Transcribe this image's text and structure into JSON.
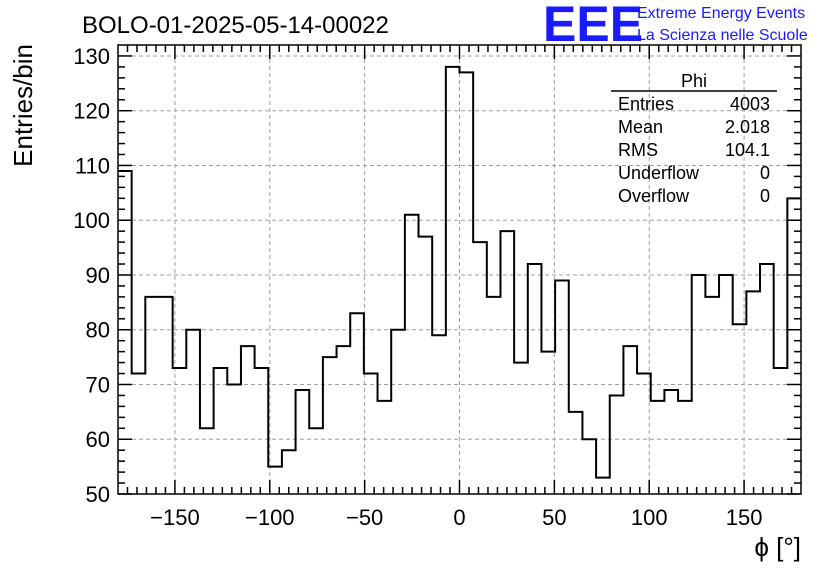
{
  "chart_data": {
    "type": "bar",
    "title": "BOLO-01-2025-05-14-00022",
    "xlabel": "ϕ [°]",
    "ylabel": "Entries/bin",
    "xlim": [
      -180,
      180
    ],
    "ylim": [
      50,
      132
    ],
    "bin_width": 7.2,
    "grid": true,
    "xticks": [
      -150,
      -100,
      -50,
      0,
      50,
      100,
      150
    ],
    "xtick_labels": [
      "−150",
      "−100",
      "−50",
      "0",
      "50",
      "100",
      "150"
    ],
    "yticks": [
      50,
      60,
      70,
      80,
      90,
      100,
      110,
      120,
      130
    ],
    "ytick_labels": [
      "50",
      "60",
      "70",
      "80",
      "90",
      "100",
      "110",
      "120",
      "130"
    ],
    "values": [
      109,
      72,
      86,
      86,
      73,
      80,
      62,
      73,
      70,
      77,
      73,
      55,
      58,
      69,
      62,
      75,
      77,
      83,
      72,
      67,
      80,
      101,
      97,
      79,
      128,
      127,
      96,
      86,
      98,
      74,
      92,
      76,
      89,
      65,
      60,
      53,
      68,
      77,
      72,
      67,
      69,
      67,
      90,
      86,
      90,
      81,
      87,
      92,
      73,
      104
    ]
  },
  "stats_box": {
    "title": "Phi",
    "entries": [
      {
        "label": "Entries",
        "value": "4003"
      },
      {
        "label": "Mean",
        "value": "2.018"
      },
      {
        "label": "RMS",
        "value": "104.1"
      },
      {
        "label": "Underflow",
        "value": "0"
      },
      {
        "label": "Overflow",
        "value": "0"
      }
    ]
  },
  "logo": {
    "text": "EEE",
    "line1": "Extreme Energy Events",
    "line2": "La Scienza nelle Scuole",
    "color": "#1a1aff"
  }
}
